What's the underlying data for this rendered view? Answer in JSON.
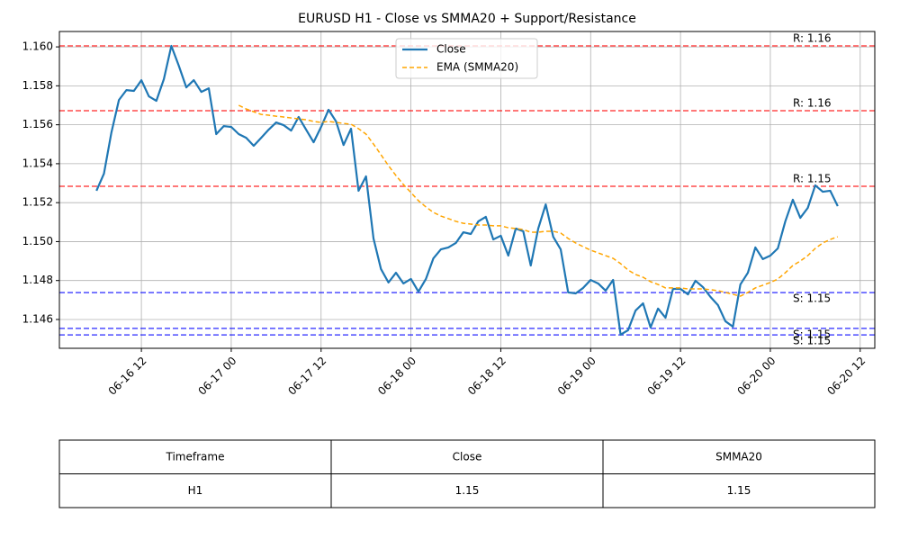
{
  "chart_data": {
    "type": "line",
    "title": "EURUSD H1 - Close vs SMMA20 + Support/Resistance",
    "x": [
      "06-16 06",
      "06-16 07",
      "06-16 08",
      "06-16 09",
      "06-16 10",
      "06-16 11",
      "06-16 12",
      "06-16 13",
      "06-16 14",
      "06-16 15",
      "06-16 16",
      "06-16 17",
      "06-16 18",
      "06-16 19",
      "06-16 20",
      "06-16 21",
      "06-16 22",
      "06-16 23",
      "06-17 00",
      "06-17 01",
      "06-17 02",
      "06-17 03",
      "06-17 04",
      "06-17 05",
      "06-17 06",
      "06-17 07",
      "06-17 08",
      "06-17 09",
      "06-17 10",
      "06-17 11",
      "06-17 12",
      "06-17 13",
      "06-17 14",
      "06-17 15",
      "06-17 16",
      "06-17 17",
      "06-17 18",
      "06-17 19",
      "06-17 20",
      "06-17 21",
      "06-17 22",
      "06-17 23",
      "06-18 00",
      "06-18 01",
      "06-18 02",
      "06-18 03",
      "06-18 04",
      "06-18 05",
      "06-18 06",
      "06-18 07",
      "06-18 08",
      "06-18 09",
      "06-18 10",
      "06-18 11",
      "06-18 12",
      "06-18 13",
      "06-18 14",
      "06-18 15",
      "06-18 16",
      "06-18 17",
      "06-18 18",
      "06-18 19",
      "06-18 20",
      "06-18 21",
      "06-18 22",
      "06-18 23",
      "06-19 00",
      "06-19 01",
      "06-19 02",
      "06-19 03",
      "06-19 04",
      "06-19 05",
      "06-19 06",
      "06-19 07",
      "06-19 08",
      "06-19 09",
      "06-19 10",
      "06-19 11",
      "06-19 12",
      "06-19 13",
      "06-19 14",
      "06-19 15",
      "06-19 16",
      "06-19 17",
      "06-19 18",
      "06-19 19",
      "06-19 20",
      "06-19 21",
      "06-19 22",
      "06-19 23",
      "06-20 00",
      "06-20 01",
      "06-20 02",
      "06-20 03",
      "06-20 04",
      "06-20 05",
      "06-20 06",
      "06-20 07",
      "06-20 08",
      "06-20 09"
    ],
    "series": [
      {
        "name": "Close",
        "color": "#1f77b4",
        "style": "solid",
        "values": [
          1.15261,
          1.15349,
          1.15561,
          1.15727,
          1.15778,
          1.15774,
          1.15829,
          1.15746,
          1.15723,
          1.15834,
          1.16005,
          1.15903,
          1.15792,
          1.15829,
          1.15769,
          1.15787,
          1.15552,
          1.15593,
          1.15589,
          1.15552,
          1.15533,
          1.15492,
          1.15533,
          1.15575,
          1.15612,
          1.15598,
          1.1557,
          1.1564,
          1.15575,
          1.1551,
          1.15589,
          1.15677,
          1.15617,
          1.15496,
          1.1558,
          1.15261,
          1.15335,
          1.15016,
          1.14859,
          1.1479,
          1.1484,
          1.14785,
          1.14808,
          1.14743,
          1.14808,
          1.14914,
          1.1496,
          1.1497,
          1.14993,
          1.15048,
          1.15039,
          1.15104,
          1.15127,
          1.15011,
          1.1503,
          1.14928,
          1.15067,
          1.15053,
          1.14877,
          1.15067,
          1.15191,
          1.15025,
          1.1496,
          1.14739,
          1.14734,
          1.14762,
          1.14803,
          1.14785,
          1.14748,
          1.14803,
          1.14522,
          1.14545,
          1.14646,
          1.14683,
          1.14559,
          1.14656,
          1.14609,
          1.14757,
          1.14757,
          1.14729,
          1.14799,
          1.14766,
          1.14716,
          1.14674,
          1.14591,
          1.14563,
          1.1478,
          1.1484,
          1.1497,
          1.1491,
          1.14928,
          1.14965,
          1.15104,
          1.15215,
          1.15122,
          1.15173,
          1.15289,
          1.15256,
          1.15261,
          1.15182
        ]
      },
      {
        "name": "EMA (SMMA20)",
        "color": "orange",
        "style": "dashed",
        "values": [
          null,
          null,
          null,
          null,
          null,
          null,
          null,
          null,
          null,
          null,
          null,
          null,
          null,
          null,
          null,
          null,
          null,
          null,
          null,
          1.157,
          1.15681,
          1.15667,
          1.15653,
          1.15649,
          1.15644,
          1.1564,
          1.15635,
          1.1563,
          1.15626,
          1.15617,
          1.15612,
          1.15617,
          1.15612,
          1.15607,
          1.15603,
          1.1558,
          1.15552,
          1.15501,
          1.15446,
          1.1539,
          1.15339,
          1.15293,
          1.15252,
          1.1521,
          1.15178,
          1.1515,
          1.15131,
          1.15118,
          1.15104,
          1.15094,
          1.1509,
          1.15085,
          1.15085,
          1.15081,
          1.15081,
          1.15071,
          1.15067,
          1.15062,
          1.15048,
          1.15048,
          1.15053,
          1.15053,
          1.15044,
          1.15016,
          1.14993,
          1.14974,
          1.14956,
          1.14942,
          1.14928,
          1.14914,
          1.14887,
          1.14854,
          1.14831,
          1.14817,
          1.14794,
          1.1478,
          1.14762,
          1.14762,
          1.14762,
          1.14757,
          1.14757,
          1.14757,
          1.14753,
          1.14748,
          1.14739,
          1.14729,
          1.1472,
          1.14739,
          1.14762,
          1.14776,
          1.1479,
          1.14808,
          1.1484,
          1.14877,
          1.149,
          1.14928,
          1.14965,
          1.14993,
          1.15011,
          1.15025
        ]
      }
    ],
    "hlines": [
      {
        "value": 1.16005,
        "label": "R: 1.16",
        "color": "red"
      },
      {
        "value": 1.15672,
        "label": "R: 1.16",
        "color": "red"
      },
      {
        "value": 1.15284,
        "label": "R: 1.15",
        "color": "red"
      },
      {
        "value": 1.14738,
        "label": "S: 1.15",
        "color": "blue"
      },
      {
        "value": 1.14554,
        "label": "S: 1.15",
        "color": "blue"
      },
      {
        "value": 1.14521,
        "label": "S: 1.15",
        "color": "blue"
      }
    ],
    "ylim": [
      1.14452,
      1.16079
    ],
    "yticks": [
      {
        "value": 1.146,
        "label": "1.146"
      },
      {
        "value": 1.148,
        "label": "1.148"
      },
      {
        "value": 1.15,
        "label": "1.150"
      },
      {
        "value": 1.152,
        "label": "1.152"
      },
      {
        "value": 1.154,
        "label": "1.154"
      },
      {
        "value": 1.156,
        "label": "1.156"
      },
      {
        "value": 1.158,
        "label": "1.158"
      },
      {
        "value": 1.16,
        "label": "1.160"
      }
    ],
    "xticks": [
      "06-16 12",
      "06-17 00",
      "06-17 12",
      "06-18 00",
      "06-18 12",
      "06-19 00",
      "06-19 12",
      "06-20 00",
      "06-20 12"
    ],
    "grid": true,
    "legend": "upper center"
  },
  "table": {
    "columns": [
      "Timeframe",
      "Close",
      "SMMA20"
    ],
    "rows": [
      [
        "H1",
        "1.15",
        "1.15"
      ]
    ]
  }
}
